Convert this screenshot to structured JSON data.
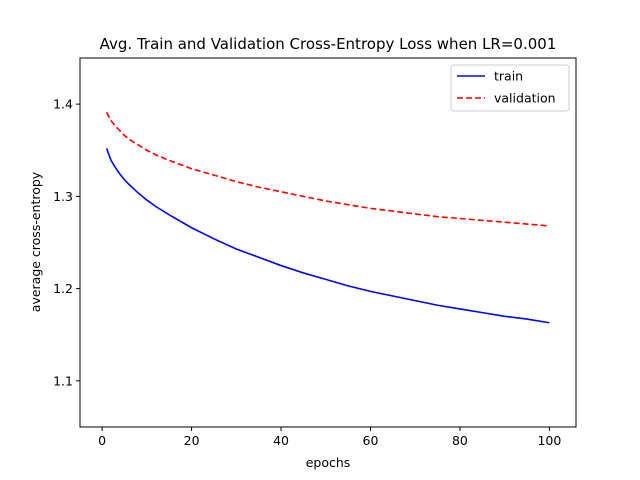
{
  "chart_data": {
    "type": "line",
    "title": "Avg. Train and Validation Cross-Entropy Loss when LR=0.001",
    "xlabel": "epochs",
    "ylabel": "average cross-entropy",
    "xlim": [
      -4.95,
      105.95
    ],
    "ylim": [
      1.05,
      1.45
    ],
    "xticks": [
      0,
      20,
      40,
      60,
      80,
      100
    ],
    "yticks": [
      1.1,
      1.2,
      1.3,
      1.4
    ],
    "xtick_labels": [
      "0",
      "20",
      "40",
      "60",
      "80",
      "100"
    ],
    "ytick_labels": [
      "1.1",
      "1.2",
      "1.3",
      "1.4"
    ],
    "grid": false,
    "legend_position": "top-right",
    "series": [
      {
        "name": "train",
        "color": "#0000ff",
        "style": "solid",
        "x": [
          1,
          2,
          3,
          4,
          5,
          6,
          8,
          10,
          12,
          15,
          20,
          25,
          30,
          35,
          40,
          45,
          50,
          55,
          60,
          65,
          70,
          75,
          80,
          85,
          90,
          95,
          100
        ],
        "y": [
          1.352,
          1.339,
          1.331,
          1.324,
          1.318,
          1.313,
          1.304,
          1.296,
          1.289,
          1.28,
          1.266,
          1.254,
          1.243,
          1.234,
          1.225,
          1.217,
          1.21,
          1.203,
          1.197,
          1.192,
          1.187,
          1.182,
          1.178,
          1.174,
          1.17,
          1.167,
          1.163
        ]
      },
      {
        "name": "validation",
        "color": "#ff0000",
        "style": "dashed",
        "x": [
          1,
          2,
          3,
          4,
          5,
          6,
          8,
          10,
          12,
          15,
          20,
          25,
          30,
          35,
          40,
          45,
          50,
          55,
          60,
          65,
          70,
          75,
          80,
          85,
          90,
          95,
          100
        ],
        "y": [
          1.391,
          1.382,
          1.376,
          1.371,
          1.366,
          1.362,
          1.356,
          1.35,
          1.345,
          1.339,
          1.33,
          1.323,
          1.316,
          1.31,
          1.305,
          1.3,
          1.295,
          1.291,
          1.287,
          1.284,
          1.281,
          1.278,
          1.276,
          1.274,
          1.272,
          1.27,
          1.268
        ]
      }
    ]
  }
}
